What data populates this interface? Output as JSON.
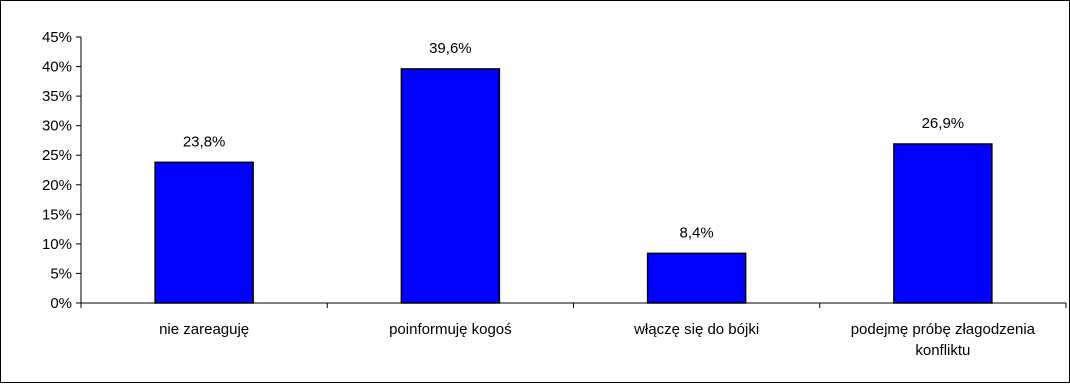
{
  "chart_data": {
    "type": "bar",
    "categories": [
      [
        "nie zareaguję"
      ],
      [
        "poinformuję kogoś"
      ],
      [
        "włączę się do bójki"
      ],
      [
        "podejmę próbę złagodzenia",
        "konfliktu"
      ]
    ],
    "values": [
      23.8,
      39.6,
      8.4,
      26.9
    ],
    "data_labels": [
      "23,8%",
      "39,6%",
      "8,4%",
      "26,9%"
    ],
    "y_ticks": [
      "0%",
      "5%",
      "10%",
      "15%",
      "20%",
      "25%",
      "30%",
      "35%",
      "40%",
      "45%"
    ],
    "ylim": [
      0,
      45
    ],
    "grid": false,
    "legend": "none",
    "bar_color": "#0000ff",
    "bar_edge_color": "#000000"
  }
}
